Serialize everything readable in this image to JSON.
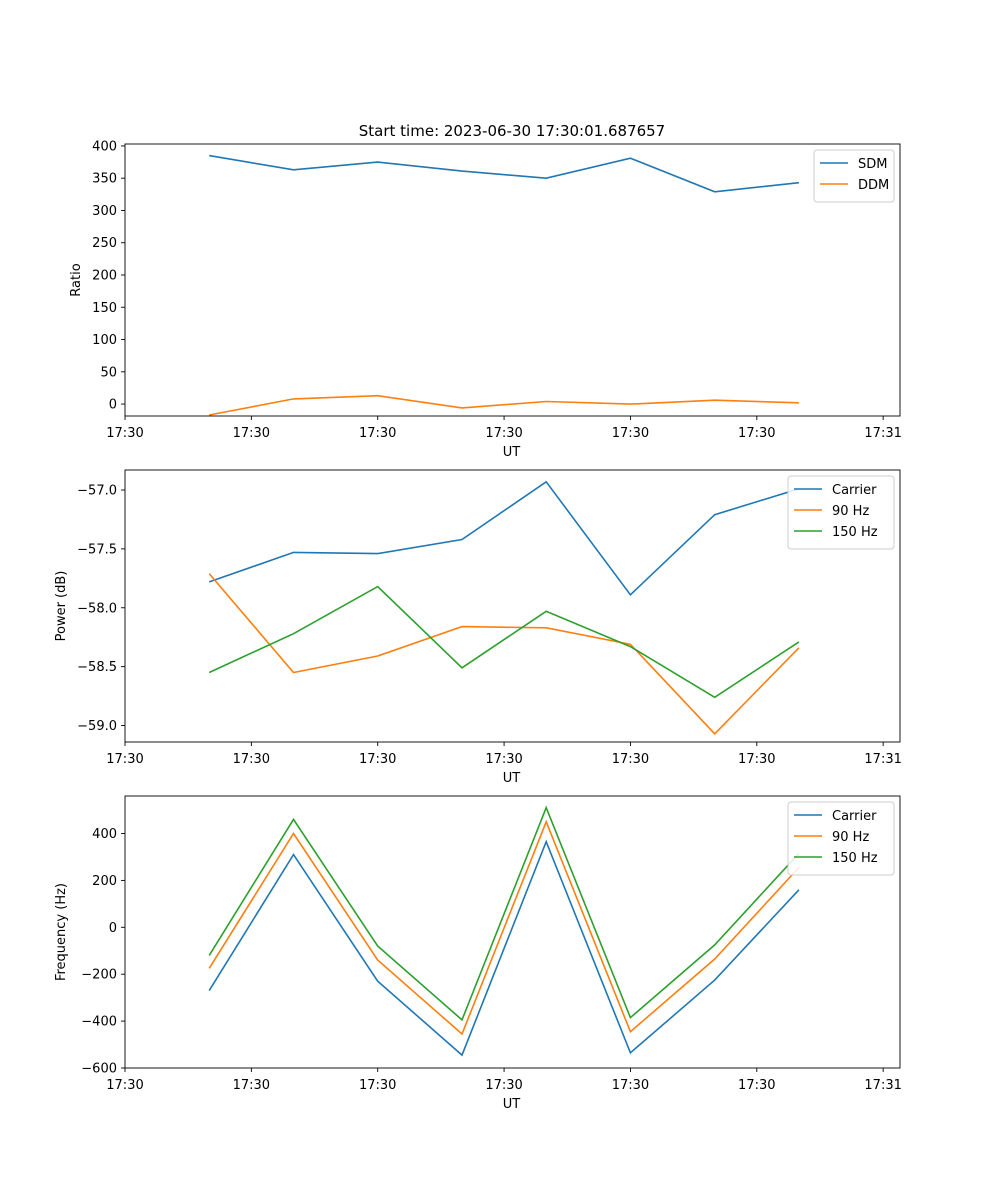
{
  "figure_title": "Start time: 2023-06-30 17:30:01.687657",
  "chart_data": [
    {
      "type": "line",
      "xlabel": "UT",
      "ylabel": "Ratio",
      "x_tick_labels": [
        "17:30",
        "17:30",
        "17:30",
        "17:30",
        "17:30",
        "17:30",
        "17:31"
      ],
      "x": [
        1,
        2,
        3,
        4,
        5,
        6,
        7,
        8
      ],
      "xlim": [
        0,
        9.2
      ],
      "x_tick_positions": [
        0,
        1.5,
        3,
        4.5,
        6,
        7.5,
        9
      ],
      "ylim": [
        -18.5,
        403
      ],
      "y_ticks": [
        0,
        50,
        100,
        150,
        200,
        250,
        300,
        350,
        400
      ],
      "y_tick_labels": [
        "0",
        "50",
        "100",
        "150",
        "200",
        "250",
        "300",
        "350",
        "400"
      ],
      "legend_position": "upper right",
      "series": [
        {
          "name": "SDM",
          "color": "#1f77b4",
          "values": [
            385,
            363,
            375,
            361,
            350,
            381,
            329,
            343
          ]
        },
        {
          "name": "DDM",
          "color": "#ff7f0e",
          "values": [
            -17,
            8,
            13,
            -6,
            4,
            0,
            6,
            2
          ]
        }
      ]
    },
    {
      "type": "line",
      "xlabel": "UT",
      "ylabel": "Power (dB)",
      "x_tick_labels": [
        "17:30",
        "17:30",
        "17:30",
        "17:30",
        "17:30",
        "17:30",
        "17:31"
      ],
      "x": [
        1,
        2,
        3,
        4,
        5,
        6,
        7,
        8
      ],
      "xlim": [
        0,
        9.2
      ],
      "x_tick_positions": [
        0,
        1.5,
        3,
        4.5,
        6,
        7.5,
        9
      ],
      "ylim": [
        -59.14,
        -56.83
      ],
      "y_ticks": [
        -59.0,
        -58.5,
        -58.0,
        -57.5,
        -57.0
      ],
      "y_tick_labels": [
        "−59.0",
        "−58.5",
        "−58.0",
        "−57.5",
        "−57.0"
      ],
      "legend_position": "upper right",
      "series": [
        {
          "name": "Carrier",
          "color": "#1f77b4",
          "values": [
            -57.78,
            -57.53,
            -57.54,
            -57.42,
            -56.93,
            -57.89,
            -57.21,
            -56.99
          ]
        },
        {
          "name": "90 Hz",
          "color": "#ff7f0e",
          "values": [
            -57.71,
            -58.55,
            -58.41,
            -58.16,
            -58.17,
            -58.31,
            -59.07,
            -58.34
          ]
        },
        {
          "name": "150 Hz",
          "color": "#2ca02c",
          "values": [
            -58.55,
            -58.22,
            -57.82,
            -58.51,
            -58.03,
            -58.33,
            -58.76,
            -58.29
          ]
        }
      ]
    },
    {
      "type": "line",
      "xlabel": "UT",
      "ylabel": "Frequency (Hz)",
      "x_tick_labels": [
        "17:30",
        "17:30",
        "17:30",
        "17:30",
        "17:30",
        "17:30",
        "17:31"
      ],
      "x": [
        1,
        2,
        3,
        4,
        5,
        6,
        7,
        8
      ],
      "xlim": [
        0,
        9.2
      ],
      "x_tick_positions": [
        0,
        1.5,
        3,
        4.5,
        6,
        7.5,
        9
      ],
      "ylim": [
        -600,
        560
      ],
      "y_ticks": [
        -600,
        -400,
        -200,
        0,
        200,
        400
      ],
      "y_tick_labels": [
        "−600",
        "−400",
        "−200",
        "0",
        "200",
        "400"
      ],
      "legend_position": "upper right",
      "series": [
        {
          "name": "Carrier",
          "color": "#1f77b4",
          "values": [
            -270,
            310,
            -230,
            -545,
            365,
            -535,
            -225,
            160
          ]
        },
        {
          "name": "90 Hz",
          "color": "#ff7f0e",
          "values": [
            -175,
            400,
            -140,
            -455,
            450,
            -445,
            -135,
            255
          ]
        },
        {
          "name": "150 Hz",
          "color": "#2ca02c",
          "values": [
            -120,
            460,
            -80,
            -395,
            510,
            -385,
            -75,
            315
          ]
        }
      ]
    }
  ]
}
